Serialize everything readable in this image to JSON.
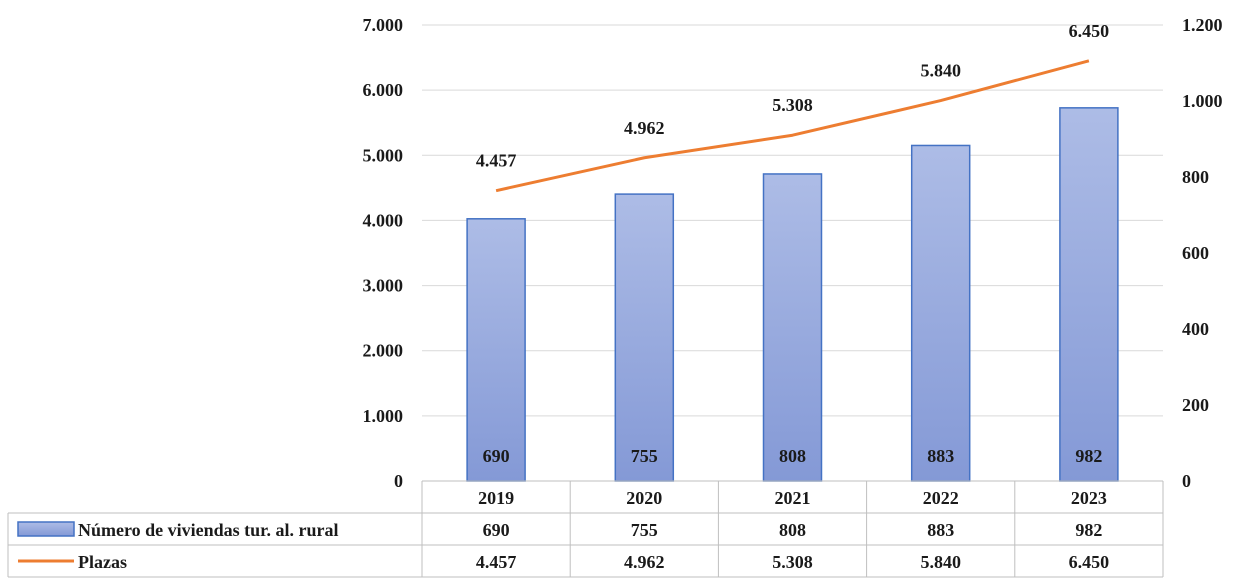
{
  "chart_data": {
    "type": "bar",
    "categories": [
      "2019",
      "2020",
      "2021",
      "2022",
      "2023"
    ],
    "series": [
      {
        "name": "Número de viviendas tur. al. rural",
        "type": "bar",
        "axis": "right",
        "values": [
          690,
          755,
          808,
          883,
          982
        ],
        "value_labels": [
          "690",
          "755",
          "808",
          "883",
          "982"
        ],
        "color": "#8fa3d9"
      },
      {
        "name": "Plazas",
        "type": "line",
        "axis": "left",
        "values": [
          4457,
          4962,
          5308,
          5840,
          6450
        ],
        "value_labels": [
          "4.457",
          "4.962",
          "5.308",
          "5.840",
          "6.450"
        ],
        "color": "#ed7d31"
      }
    ],
    "y_left": {
      "range": [
        0,
        7000
      ],
      "tick_values": [
        0,
        1000,
        2000,
        3000,
        4000,
        5000,
        6000,
        7000
      ],
      "tick_labels": [
        "0",
        "1.000",
        "2.000",
        "3.000",
        "4.000",
        "5.000",
        "6.000",
        "7.000"
      ]
    },
    "y_right": {
      "range": [
        0,
        1200
      ],
      "tick_values": [
        0,
        200,
        400,
        600,
        800,
        1000,
        1200
      ],
      "tick_labels": [
        "0",
        "200",
        "400",
        "600",
        "800",
        "1.000",
        "1.200"
      ]
    },
    "grid": true,
    "legend": "data-table"
  }
}
